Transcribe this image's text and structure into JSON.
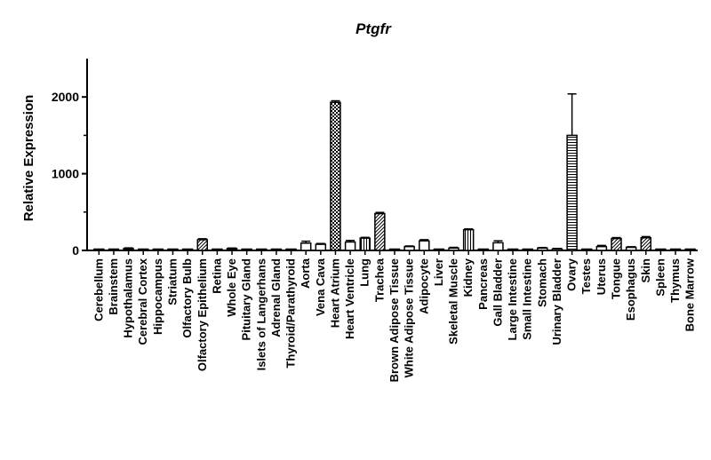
{
  "chart_data": {
    "type": "bar",
    "title": "Ptgfr",
    "xlabel": "",
    "ylabel": "Relative Expression",
    "ylim": [
      0,
      2500
    ],
    "yticks": [
      0,
      1000,
      2000
    ],
    "grid": false,
    "legend": "none",
    "categories": [
      "Cerebellum",
      "Brainstem",
      "Hypothalamus",
      "Cerebral Cortex",
      "Hippocampus",
      "Striatum",
      "Olfactory Bulb",
      "Olfactory Epithelium",
      "Retina",
      "Whole Eye",
      "Pituitary Gland",
      "Islets of Langerhans",
      "Adrenal Gland",
      "Thyroid/Parathyroid",
      "Aorta",
      "Vena Cava",
      "Heart Atrium",
      "Heart Ventricle",
      "Lung",
      "Trachea",
      "Brown Adipose Tissue",
      "White Adipose Tissue",
      "Adipocyte",
      "Liver",
      "Skeletal Muscle",
      "Kidney",
      "Pancreas",
      "Gall Bladder",
      "Large Intestine",
      "Small Intestine",
      "Stomach",
      "Urinary Bladder",
      "Ovary",
      "Testes",
      "Uterus",
      "Tongue",
      "Esophagus",
      "Skin",
      "Spleen",
      "Thymus",
      "Bone Marrow"
    ],
    "values": [
      5,
      8,
      25,
      3,
      5,
      10,
      10,
      140,
      3,
      25,
      8,
      5,
      3,
      8,
      95,
      80,
      1930,
      110,
      160,
      480,
      3,
      50,
      125,
      3,
      30,
      270,
      5,
      100,
      8,
      3,
      30,
      20,
      1500,
      3,
      50,
      155,
      40,
      165,
      8,
      3,
      10
    ],
    "errors": [
      2,
      3,
      8,
      1,
      2,
      4,
      4,
      12,
      1,
      6,
      3,
      2,
      1,
      3,
      25,
      10,
      20,
      20,
      10,
      15,
      1,
      8,
      15,
      1,
      10,
      10,
      2,
      25,
      3,
      1,
      8,
      6,
      540,
      1,
      15,
      12,
      8,
      15,
      3,
      1,
      3
    ],
    "patterns": [
      "solid",
      "solid",
      "solid",
      "solid",
      "solid",
      "solid",
      "solid",
      "diag",
      "solid",
      "solid",
      "solid",
      "solid",
      "solid",
      "solid",
      "hollow",
      "hollow",
      "checker",
      "hollow",
      "vlines",
      "diag",
      "solid",
      "hollow",
      "hollow",
      "solid",
      "hollow",
      "vlines",
      "solid",
      "hollow",
      "solid",
      "solid",
      "hollow",
      "hollow",
      "hlines",
      "solid",
      "hollow",
      "diag",
      "hollow",
      "diag",
      "solid",
      "solid",
      "solid"
    ]
  }
}
